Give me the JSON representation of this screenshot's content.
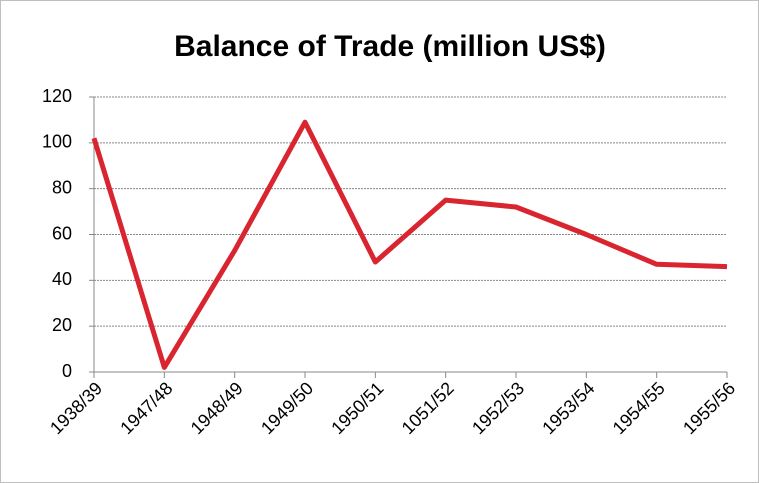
{
  "chart_data": {
    "type": "line",
    "title": "Balance of Trade (million US$)",
    "categories": [
      "1938/39",
      "1947/48",
      "1948/49",
      "1949/50",
      "1950/51",
      "1051/52",
      "1952/53",
      "1953/54",
      "1954/55",
      "1955/56"
    ],
    "series": [
      {
        "name": "Balance of Trade",
        "color": "#d9252f",
        "values": [
          102,
          2,
          53,
          109,
          48,
          75,
          72,
          60,
          47,
          46
        ]
      }
    ],
    "ylim": [
      0,
      120
    ],
    "yticks": [
      0,
      20,
      40,
      60,
      80,
      100,
      120
    ],
    "grid": true
  }
}
